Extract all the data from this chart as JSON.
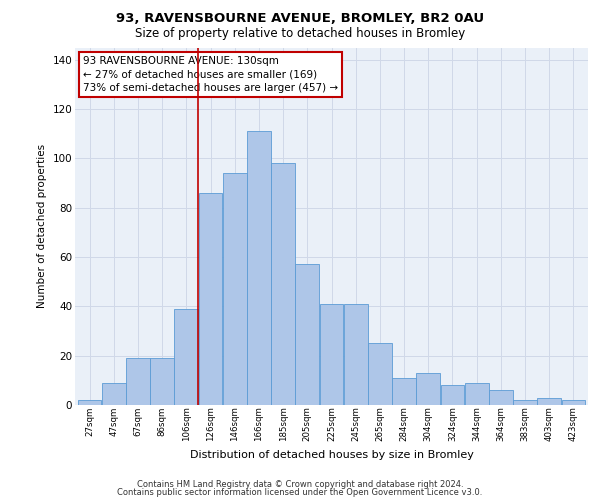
{
  "title": "93, RAVENSBOURNE AVENUE, BROMLEY, BR2 0AU",
  "subtitle": "Size of property relative to detached houses in Bromley",
  "xlabel": "Distribution of detached houses by size in Bromley",
  "ylabel": "Number of detached properties",
  "categories": [
    "27sqm",
    "47sqm",
    "67sqm",
    "86sqm",
    "106sqm",
    "126sqm",
    "146sqm",
    "166sqm",
    "185sqm",
    "205sqm",
    "225sqm",
    "245sqm",
    "265sqm",
    "284sqm",
    "304sqm",
    "324sqm",
    "344sqm",
    "364sqm",
    "383sqm",
    "403sqm",
    "423sqm"
  ],
  "values": [
    2,
    9,
    19,
    19,
    39,
    86,
    94,
    111,
    98,
    57,
    41,
    41,
    25,
    11,
    13,
    8,
    9,
    6,
    2,
    3,
    2
  ],
  "bar_color": "#aec6e8",
  "bar_edge_color": "#5b9bd5",
  "vline_color": "#c00000",
  "annotation_lines": [
    "93 RAVENSBOURNE AVENUE: 130sqm",
    "← 27% of detached houses are smaller (169)",
    "73% of semi-detached houses are larger (457) →"
  ],
  "annotation_box_color": "#ffffff",
  "annotation_box_edge_color": "#c00000",
  "ylim": [
    0,
    145
  ],
  "yticks": [
    0,
    20,
    40,
    60,
    80,
    100,
    120,
    140
  ],
  "grid_color": "#d0d8e8",
  "bg_color": "#eaf0f8",
  "footer_line1": "Contains HM Land Registry data © Crown copyright and database right 2024.",
  "footer_line2": "Contains public sector information licensed under the Open Government Licence v3.0."
}
